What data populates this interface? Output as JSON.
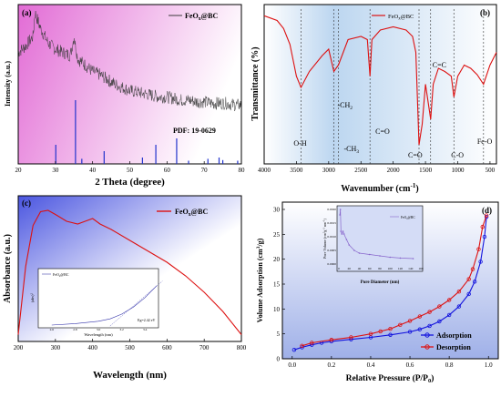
{
  "chart_data": [
    {
      "id": "a",
      "type": "line",
      "panel_label": "(a)",
      "xlabel": "2 Theta (degree)",
      "ylabel": "Intensity (a.u.)",
      "xlim": [
        20,
        80
      ],
      "xticks": [
        20,
        30,
        40,
        50,
        60,
        70,
        80
      ],
      "legend": "FeOx@BC",
      "legend_sub": "x",
      "annotation": "PDF: 19-0629",
      "colors": {
        "line": "#3a3a3a",
        "ref": "#2233cc",
        "bg_start": "#e26bd5",
        "bg_end": "#ffffff"
      },
      "pattern_x": [
        20,
        22,
        24,
        24.5,
        26,
        28,
        30,
        32,
        34,
        35,
        36,
        38,
        40,
        42,
        44,
        46,
        48,
        50,
        52,
        54,
        56,
        58,
        60,
        62,
        64,
        66,
        68,
        70,
        72,
        74,
        76,
        78,
        80
      ],
      "pattern_y": [
        0.7,
        0.74,
        0.8,
        0.95,
        0.85,
        0.76,
        0.72,
        0.7,
        0.68,
        0.8,
        0.66,
        0.62,
        0.58,
        0.56,
        0.53,
        0.5,
        0.48,
        0.46,
        0.45,
        0.44,
        0.43,
        0.42,
        0.42,
        0.41,
        0.4,
        0.4,
        0.39,
        0.39,
        0.38,
        0.38,
        0.38,
        0.37,
        0.37
      ],
      "ref_x": [
        30.1,
        35.4,
        37.1,
        43.1,
        53.4,
        57.0,
        62.6,
        65.8,
        71.0,
        74.0,
        75.0,
        79.0
      ],
      "ref_y": [
        0.3,
        1.0,
        0.08,
        0.2,
        0.1,
        0.3,
        0.4,
        0.05,
        0.08,
        0.1,
        0.06,
        0.05
      ]
    },
    {
      "id": "b",
      "type": "line",
      "panel_label": "(b)",
      "xlabel": "Wavenumber (cm",
      "xlabel_sup": "-1",
      "xlabel_end": ")",
      "ylabel": "Transmittance (%)",
      "xlim": [
        4000,
        400
      ],
      "xticks": [
        4000,
        3500,
        3000,
        2500,
        2000,
        1500,
        1000,
        500
      ],
      "legend": "FeOx@BC",
      "legend_sub": "x",
      "peaks": [
        {
          "x": 3430,
          "label": "O-H"
        },
        {
          "x": 2920,
          "label": "-CH",
          "sub": "2"
        },
        {
          "x": 2850,
          "label": "-CH",
          "sub": "3"
        },
        {
          "x": 2360,
          "label": "C=O"
        },
        {
          "x": 1600,
          "label": "C=O"
        },
        {
          "x": 1420,
          "label": "C=C"
        },
        {
          "x": 1060,
          "label": "C-O"
        },
        {
          "x": 600,
          "label": "Fe-O"
        }
      ],
      "colors": {
        "line": "#dd1111",
        "bg": "#bcd6f0"
      },
      "x": [
        4000,
        3800,
        3700,
        3600,
        3500,
        3430,
        3300,
        3100,
        3000,
        2920,
        2850,
        2700,
        2500,
        2400,
        2360,
        2330,
        2200,
        2000,
        1800,
        1700,
        1650,
        1600,
        1550,
        1500,
        1420,
        1380,
        1300,
        1200,
        1100,
        1060,
        1000,
        900,
        800,
        700,
        600,
        500,
        400
      ],
      "y": [
        0.93,
        0.9,
        0.85,
        0.75,
        0.55,
        0.48,
        0.58,
        0.68,
        0.72,
        0.58,
        0.62,
        0.78,
        0.8,
        0.78,
        0.55,
        0.78,
        0.84,
        0.86,
        0.84,
        0.8,
        0.7,
        0.12,
        0.25,
        0.5,
        0.28,
        0.5,
        0.6,
        0.58,
        0.55,
        0.42,
        0.55,
        0.62,
        0.6,
        0.56,
        0.5,
        0.62,
        0.7
      ]
    },
    {
      "id": "c",
      "type": "line",
      "panel_label": "(c)",
      "xlabel": "Wavelength (nm)",
      "ylabel": "Absorbance (a.u.)",
      "xlim": [
        200,
        800
      ],
      "xticks": [
        200,
        300,
        400,
        500,
        600,
        700,
        800
      ],
      "legend": "FeOx@BC",
      "legend_sub": "x",
      "colors": {
        "line": "#dd1111",
        "bg": "#4a55e0"
      },
      "x": [
        200,
        220,
        240,
        260,
        280,
        300,
        330,
        360,
        380,
        400,
        420,
        450,
        500,
        550,
        600,
        650,
        700,
        750,
        800
      ],
      "y": [
        0.05,
        0.55,
        0.85,
        0.95,
        0.96,
        0.93,
        0.88,
        0.86,
        0.88,
        0.9,
        0.86,
        0.82,
        0.74,
        0.66,
        0.58,
        0.48,
        0.36,
        0.22,
        0.05
      ],
      "inset": {
        "legend": "FeOx@BC",
        "legend_sub": "x",
        "xlabel": "Wavelength (nm)",
        "ylabel": "(ahv)",
        "ylabel_sup": "2",
        "annotation": "Eg=2.42 eV",
        "xticks": [
          2.6,
          2.8,
          3.0,
          3.2,
          3.4
        ],
        "x": [
          2.6,
          2.8,
          3.0,
          3.1,
          3.2,
          3.3,
          3.4,
          3.5
        ],
        "y": [
          0.02,
          0.05,
          0.1,
          0.15,
          0.25,
          0.4,
          0.6,
          0.85
        ]
      }
    },
    {
      "id": "d",
      "type": "line",
      "panel_label": "(d)",
      "xlabel": "Relative Pressure (P/P",
      "xlabel_sub": "0",
      "xlabel_end": ")",
      "ylabel": "Volume Adsorption (cm",
      "ylabel_sup": "3",
      "ylabel_end": "/g)",
      "xlim": [
        -0.05,
        1.05
      ],
      "ylim": [
        0,
        30
      ],
      "xticks": [
        0.0,
        0.2,
        0.4,
        0.6,
        0.8,
        1.0
      ],
      "yticks": [
        0,
        5,
        10,
        15,
        20,
        25,
        30
      ],
      "colors": {
        "adsorption": "#1111dd",
        "desorption": "#dd1111",
        "bg": "#9fb0e8"
      },
      "series": [
        {
          "name": "Adsorption",
          "x": [
            0.01,
            0.05,
            0.1,
            0.15,
            0.2,
            0.3,
            0.4,
            0.5,
            0.6,
            0.65,
            0.7,
            0.75,
            0.8,
            0.85,
            0.9,
            0.93,
            0.96,
            0.98,
            0.99
          ],
          "y": [
            1.8,
            2.3,
            2.8,
            3.2,
            3.5,
            3.9,
            4.3,
            4.8,
            5.4,
            5.9,
            6.6,
            7.5,
            8.8,
            10.5,
            13.0,
            15.5,
            19.5,
            24.5,
            28.5
          ]
        },
        {
          "name": "Desorption",
          "x": [
            0.99,
            0.97,
            0.95,
            0.92,
            0.9,
            0.85,
            0.8,
            0.75,
            0.7,
            0.65,
            0.6,
            0.55,
            0.5,
            0.45,
            0.4,
            0.3,
            0.2,
            0.1,
            0.05
          ],
          "y": [
            28.8,
            26.5,
            22.0,
            18.0,
            16.0,
            13.5,
            11.8,
            10.5,
            9.4,
            8.5,
            7.6,
            6.8,
            6.0,
            5.5,
            5.0,
            4.3,
            3.8,
            3.2,
            2.6
          ]
        }
      ],
      "inset": {
        "legend": "FeOx@BC",
        "legend_sub": "x",
        "xlabel": "Pore Diameter (nm)",
        "ylabel": "Pore Volume (cm",
        "ylabel_sup": "3",
        "ylabel_end": "g",
        "ylabel_sup2": "-1",
        "ylabel_mid": " nm",
        "ylabel_close": ")",
        "xlim": [
          0,
          160
        ],
        "ylim": [
          0,
          0.002
        ],
        "xticks": [
          0,
          20,
          40,
          60,
          80,
          100,
          120,
          140,
          160
        ],
        "yticks": [
          0.0,
          0.0005,
          0.001,
          0.0015,
          0.002
        ],
        "ytick_labels": [
          "0.0000",
          "0.0005",
          "0.0010",
          "0.0015",
          "0.0020"
        ],
        "x": [
          2,
          3,
          4,
          6,
          8,
          10,
          15,
          20,
          30,
          40,
          60,
          80,
          100,
          120,
          145
        ],
        "y": [
          0.0018,
          0.002,
          0.0012,
          0.0011,
          0.0012,
          0.0011,
          0.0009,
          0.0007,
          0.0005,
          0.0004,
          0.00035,
          0.0003,
          0.00025,
          0.00022,
          0.0002
        ]
      }
    }
  ]
}
